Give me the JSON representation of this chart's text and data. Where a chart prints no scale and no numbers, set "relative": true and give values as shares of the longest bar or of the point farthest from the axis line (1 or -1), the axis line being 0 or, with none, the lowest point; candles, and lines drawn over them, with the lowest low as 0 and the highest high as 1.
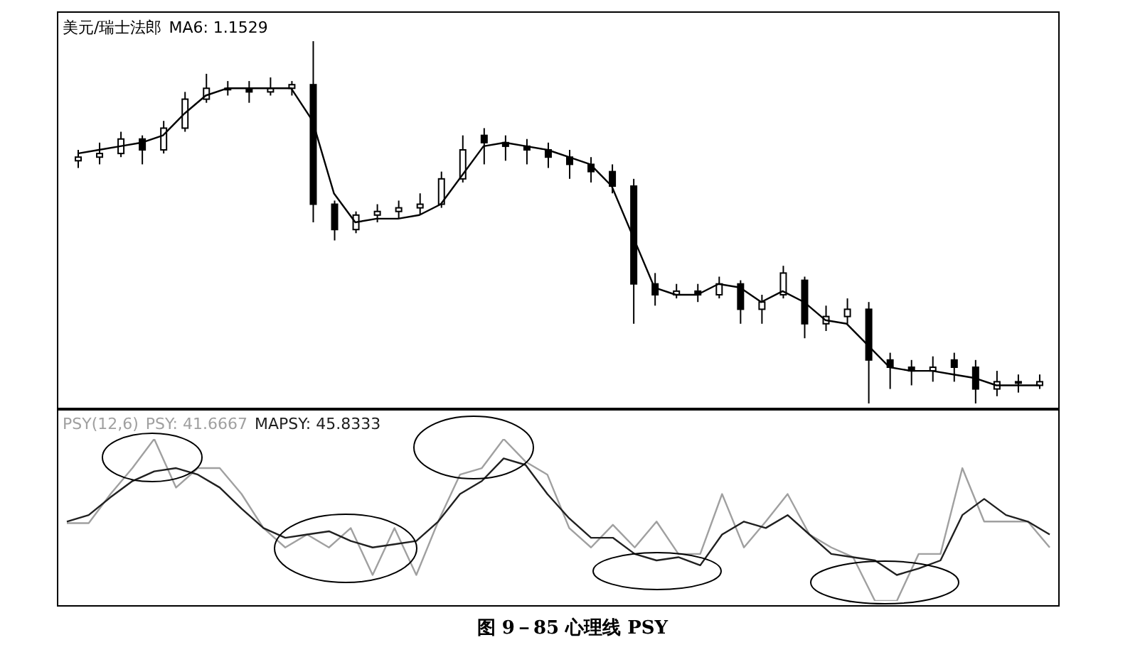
{
  "chart_data": [
    {
      "type": "candlestick",
      "title": "美元/瑞士法郎",
      "relative": true,
      "color": "#000000",
      "legend": "top left",
      "tick_labels": false,
      "categories": [
        null,
        null,
        null,
        null,
        null,
        null,
        null,
        null,
        null,
        null,
        null,
        null,
        null,
        null,
        null,
        null,
        null,
        null,
        null,
        null,
        null,
        null,
        null,
        null,
        null,
        null,
        null,
        null,
        null,
        null,
        null,
        null,
        null,
        null,
        null,
        null,
        null,
        null,
        null,
        null,
        null,
        null,
        null,
        null,
        null,
        null
      ],
      "ohlc": [
        [
          0.67,
          0.7,
          0.65,
          0.68
        ],
        [
          0.68,
          0.72,
          0.66,
          0.69
        ],
        [
          0.69,
          0.75,
          0.68,
          0.73
        ],
        [
          0.73,
          0.74,
          0.66,
          0.7
        ],
        [
          0.7,
          0.78,
          0.69,
          0.76
        ],
        [
          0.76,
          0.86,
          0.75,
          0.84
        ],
        [
          0.84,
          0.91,
          0.83,
          0.87
        ],
        [
          0.87,
          0.89,
          0.85,
          0.87
        ],
        [
          0.87,
          0.89,
          0.83,
          0.86
        ],
        [
          0.86,
          0.9,
          0.85,
          0.87
        ],
        [
          0.87,
          0.89,
          0.85,
          0.88
        ],
        [
          0.88,
          1.0,
          0.5,
          0.55
        ],
        [
          0.55,
          0.56,
          0.45,
          0.48
        ],
        [
          0.48,
          0.53,
          0.47,
          0.52
        ],
        [
          0.52,
          0.55,
          0.5,
          0.53
        ],
        [
          0.53,
          0.56,
          0.51,
          0.54
        ],
        [
          0.54,
          0.58,
          0.52,
          0.55
        ],
        [
          0.55,
          0.64,
          0.54,
          0.62
        ],
        [
          0.62,
          0.74,
          0.61,
          0.7
        ],
        [
          0.74,
          0.76,
          0.66,
          0.72
        ],
        [
          0.72,
          0.74,
          0.67,
          0.71
        ],
        [
          0.71,
          0.73,
          0.66,
          0.7
        ],
        [
          0.7,
          0.72,
          0.65,
          0.68
        ],
        [
          0.68,
          0.7,
          0.62,
          0.66
        ],
        [
          0.66,
          0.68,
          0.61,
          0.64
        ],
        [
          0.64,
          0.66,
          0.58,
          0.6
        ],
        [
          0.6,
          0.62,
          0.22,
          0.33
        ],
        [
          0.33,
          0.36,
          0.27,
          0.3
        ],
        [
          0.3,
          0.33,
          0.29,
          0.31
        ],
        [
          0.31,
          0.33,
          0.28,
          0.3
        ],
        [
          0.3,
          0.35,
          0.29,
          0.33
        ],
        [
          0.33,
          0.34,
          0.22,
          0.26
        ],
        [
          0.26,
          0.3,
          0.22,
          0.28
        ],
        [
          0.3,
          0.38,
          0.29,
          0.36
        ],
        [
          0.34,
          0.35,
          0.18,
          0.22
        ],
        [
          0.22,
          0.27,
          0.2,
          0.24
        ],
        [
          0.24,
          0.29,
          0.22,
          0.26
        ],
        [
          0.26,
          0.28,
          0.0,
          0.12
        ],
        [
          0.12,
          0.14,
          0.04,
          0.1
        ],
        [
          0.1,
          0.12,
          0.05,
          0.09
        ],
        [
          0.09,
          0.13,
          0.06,
          0.1
        ],
        [
          0.12,
          0.14,
          0.06,
          0.1
        ],
        [
          0.1,
          0.12,
          0.0,
          0.04
        ],
        [
          0.04,
          0.09,
          0.02,
          0.06
        ],
        [
          0.06,
          0.08,
          0.03,
          0.06
        ],
        [
          0.05,
          0.08,
          0.04,
          0.06
        ]
      ],
      "series": [
        {
          "name": "MA6: 1.1529",
          "type": "line",
          "color": "#000000",
          "values": [
            0.69,
            0.7,
            0.71,
            0.72,
            0.74,
            0.8,
            0.85,
            0.87,
            0.87,
            0.87,
            0.87,
            0.78,
            0.58,
            0.5,
            0.51,
            0.51,
            0.52,
            0.55,
            0.63,
            0.71,
            0.72,
            0.71,
            0.7,
            0.68,
            0.66,
            0.6,
            0.46,
            0.32,
            0.3,
            0.3,
            0.33,
            0.32,
            0.28,
            0.31,
            0.28,
            0.23,
            0.22,
            0.16,
            0.1,
            0.09,
            0.09,
            0.08,
            0.07,
            0.05,
            0.05,
            0.05
          ]
        }
      ]
    },
    {
      "type": "line",
      "title": "PSY(12,6)",
      "relative": true,
      "legend": "top left",
      "tick_labels": false,
      "categories": [
        null,
        null,
        null,
        null,
        null,
        null,
        null,
        null,
        null,
        null,
        null,
        null,
        null,
        null,
        null,
        null,
        null,
        null,
        null,
        null,
        null,
        null,
        null,
        null,
        null,
        null,
        null,
        null,
        null,
        null,
        null,
        null,
        null,
        null,
        null,
        null,
        null,
        null,
        null,
        null,
        null,
        null,
        null,
        null,
        null,
        null
      ],
      "series": [
        {
          "name": "PSY: 41.6667",
          "color": "#a0a0a0",
          "values": [
            0.48,
            0.48,
            0.66,
            0.82,
            1.0,
            0.7,
            0.82,
            0.82,
            0.66,
            0.45,
            0.33,
            0.41,
            0.33,
            0.45,
            0.16,
            0.45,
            0.16,
            0.49,
            0.78,
            0.82,
            1.0,
            0.86,
            0.78,
            0.45,
            0.33,
            0.47,
            0.33,
            0.49,
            0.29,
            0.29,
            0.66,
            0.33,
            0.49,
            0.66,
            0.41,
            0.33,
            0.27,
            0.0,
            0.0,
            0.29,
            0.29,
            0.82,
            0.49,
            0.49,
            0.49,
            0.33
          ]
        },
        {
          "name": "MAPSY: 45.8333",
          "color": "#202020",
          "values": [
            0.49,
            0.53,
            0.64,
            0.74,
            0.8,
            0.82,
            0.78,
            0.7,
            0.57,
            0.45,
            0.39,
            0.41,
            0.43,
            0.37,
            0.33,
            0.35,
            0.37,
            0.49,
            0.66,
            0.74,
            0.88,
            0.84,
            0.66,
            0.51,
            0.39,
            0.39,
            0.29,
            0.25,
            0.27,
            0.22,
            0.41,
            0.49,
            0.45,
            0.53,
            0.41,
            0.29,
            0.27,
            0.25,
            0.16,
            0.2,
            0.25,
            0.53,
            0.63,
            0.53,
            0.49,
            0.41
          ]
        }
      ],
      "annotations": [
        "图 9－85 心理线 PSY"
      ]
    }
  ]
}
